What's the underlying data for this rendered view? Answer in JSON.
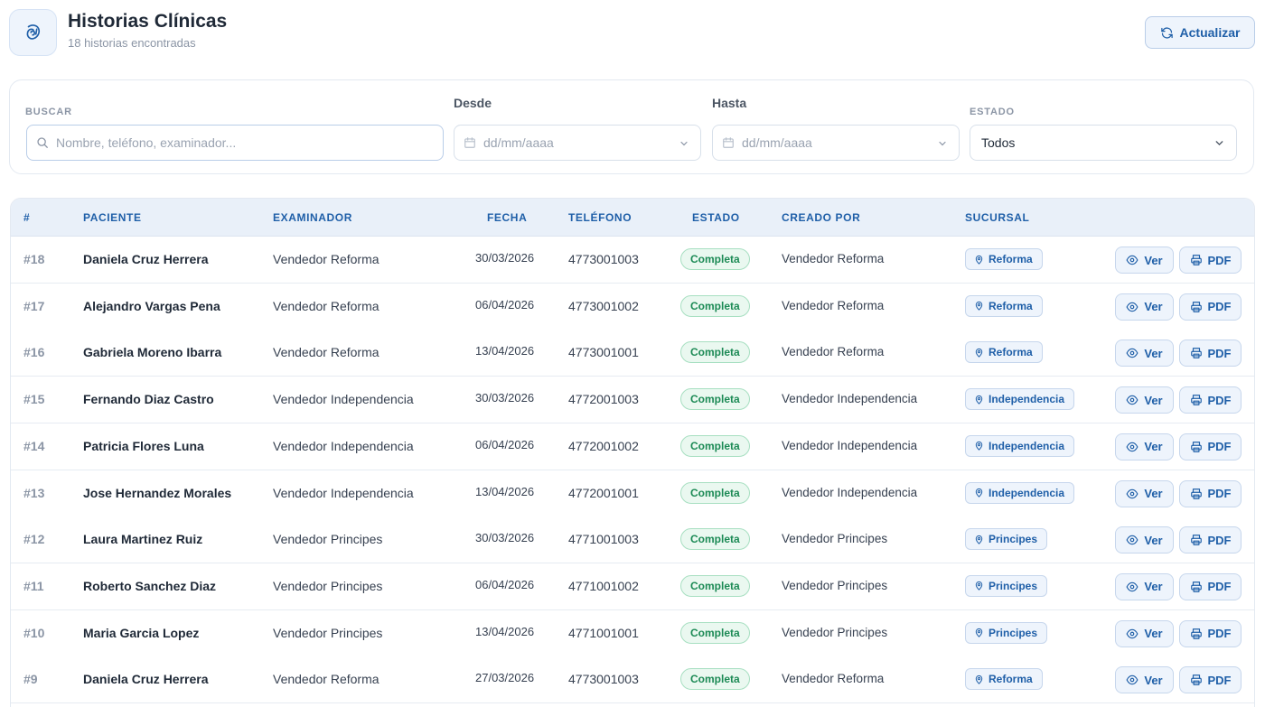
{
  "header": {
    "title": "Historias Clínicas",
    "subtitle": "18 historias encontradas",
    "refresh_label": "Actualizar",
    "logo_icon": "clinical-record-icon",
    "refresh_icon": "refresh-icon"
  },
  "filters": {
    "search_label": "BUSCAR",
    "search_placeholder": "Nombre, teléfono, examinador...",
    "from_label": "Desde",
    "from_placeholder": "dd/mm/aaaa",
    "to_label": "Hasta",
    "to_placeholder": "dd/mm/aaaa",
    "status_label": "ESTADO",
    "status_value": "Todos"
  },
  "table": {
    "columns": [
      "#",
      "PACIENTE",
      "EXAMINADOR",
      "FECHA",
      "TELÉFONO",
      "ESTADO",
      "CREADO POR",
      "SUCURSAL"
    ],
    "view_label": "Ver",
    "pdf_label": "PDF",
    "rows": [
      {
        "id": "#18",
        "paciente": "Daniela Cruz Herrera",
        "examinador": "Vendedor Reforma",
        "fecha": "30/03/2026",
        "telefono": "4773001003",
        "estado": "Completa",
        "creado_por": "Vendedor Reforma",
        "sucursal": "Reforma"
      },
      {
        "id": "#17",
        "paciente": "Alejandro Vargas Pena",
        "examinador": "Vendedor Reforma",
        "fecha": "06/04/2026",
        "telefono": "4773001002",
        "estado": "Completa",
        "creado_por": "Vendedor Reforma",
        "sucursal": "Reforma"
      },
      {
        "id": "#16",
        "paciente": "Gabriela Moreno Ibarra",
        "examinador": "Vendedor Reforma",
        "fecha": "13/04/2026",
        "telefono": "4773001001",
        "estado": "Completa",
        "creado_por": "Vendedor Reforma",
        "sucursal": "Reforma"
      },
      {
        "id": "#15",
        "paciente": "Fernando Diaz Castro",
        "examinador": "Vendedor Independencia",
        "fecha": "30/03/2026",
        "telefono": "4772001003",
        "estado": "Completa",
        "creado_por": "Vendedor Independencia",
        "sucursal": "Independencia"
      },
      {
        "id": "#14",
        "paciente": "Patricia Flores Luna",
        "examinador": "Vendedor Independencia",
        "fecha": "06/04/2026",
        "telefono": "4772001002",
        "estado": "Completa",
        "creado_por": "Vendedor Independencia",
        "sucursal": "Independencia"
      },
      {
        "id": "#13",
        "paciente": "Jose Hernandez Morales",
        "examinador": "Vendedor Independencia",
        "fecha": "13/04/2026",
        "telefono": "4772001001",
        "estado": "Completa",
        "creado_por": "Vendedor Independencia",
        "sucursal": "Independencia"
      },
      {
        "id": "#12",
        "paciente": "Laura Martinez Ruiz",
        "examinador": "Vendedor Principes",
        "fecha": "30/03/2026",
        "telefono": "4771001003",
        "estado": "Completa",
        "creado_por": "Vendedor Principes",
        "sucursal": "Principes"
      },
      {
        "id": "#11",
        "paciente": "Roberto Sanchez Diaz",
        "examinador": "Vendedor Principes",
        "fecha": "06/04/2026",
        "telefono": "4771001002",
        "estado": "Completa",
        "creado_por": "Vendedor Principes",
        "sucursal": "Principes"
      },
      {
        "id": "#10",
        "paciente": "Maria Garcia Lopez",
        "examinador": "Vendedor Principes",
        "fecha": "13/04/2026",
        "telefono": "4771001001",
        "estado": "Completa",
        "creado_por": "Vendedor Principes",
        "sucursal": "Principes"
      },
      {
        "id": "#9",
        "paciente": "Daniela Cruz Herrera",
        "examinador": "Vendedor Reforma",
        "fecha": "27/03/2026",
        "telefono": "4773001003",
        "estado": "Completa",
        "creado_por": "Vendedor Reforma",
        "sucursal": "Reforma"
      }
    ]
  },
  "colors": {
    "accent": "#1f5fa8",
    "status_complete": "#1c8a55",
    "header_bg": "#e9f0f9"
  }
}
